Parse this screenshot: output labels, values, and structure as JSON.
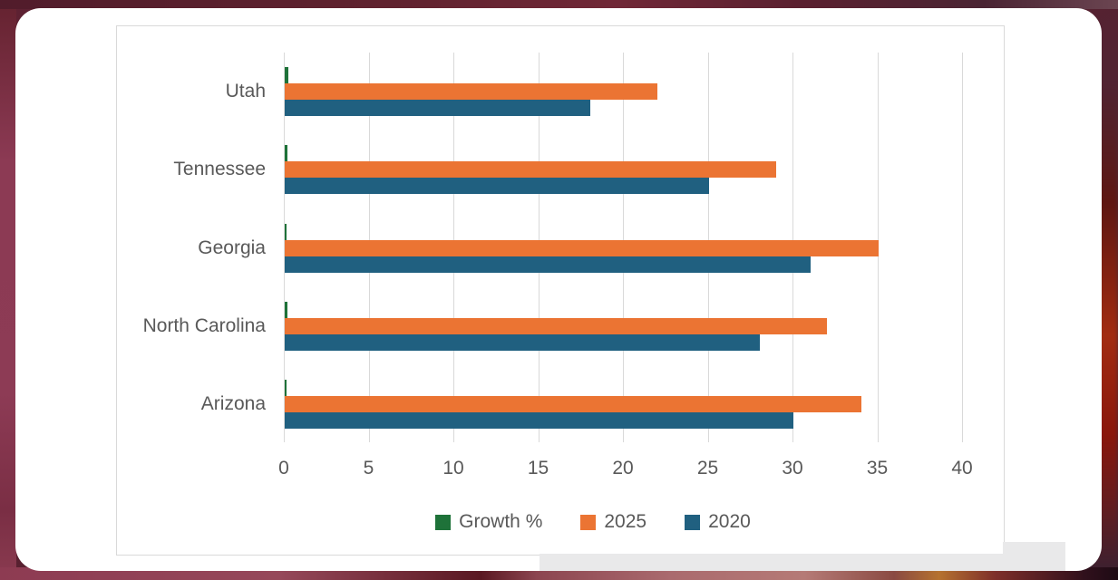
{
  "background": {
    "base_color": "#5d2132",
    "left_strip_color": "#8c3a54",
    "right_streak_color": "#a22c12",
    "bottom_orange_patch": "#b5722f",
    "card_color": "#ffffff",
    "scroll_strip_color": "#E9E9EA"
  },
  "chart_data": {
    "type": "bar",
    "orientation": "horizontal",
    "title": "",
    "categories": [
      "Utah",
      "Tennessee",
      "Georgia",
      "North Carolina",
      "Arizona"
    ],
    "series": [
      {
        "name": "Growth %",
        "color": "#1E7239",
        "values": [
          0.22,
          0.16,
          0.13,
          0.14,
          0.13
        ]
      },
      {
        "name": "2025",
        "color": "#EB7433",
        "values": [
          22,
          29,
          35,
          32,
          34
        ]
      },
      {
        "name": "2020",
        "color": "#206080",
        "values": [
          18,
          25,
          31,
          28,
          30
        ]
      }
    ],
    "x_axis": {
      "min": 0,
      "max": 40,
      "tick_step": 5,
      "ticks": [
        0,
        5,
        10,
        15,
        20,
        25,
        30,
        35,
        40
      ]
    },
    "grid": true,
    "legend_position": "bottom",
    "text_color": "#595959",
    "gridline_color": "#D9D9D9"
  }
}
